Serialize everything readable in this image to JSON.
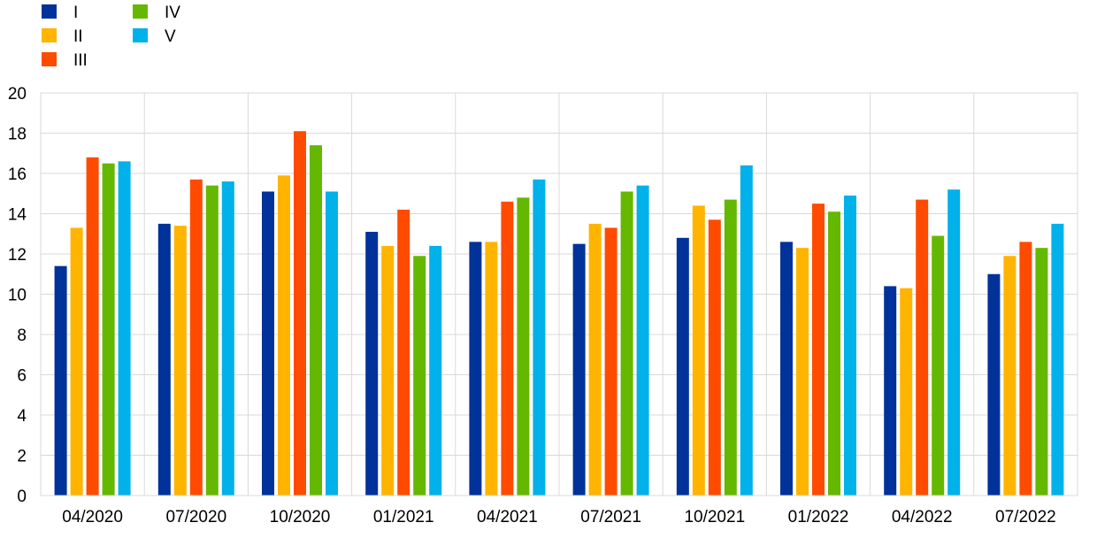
{
  "chart_data": {
    "type": "bar",
    "title": "",
    "xlabel": "",
    "ylabel": "",
    "ylim": [
      0,
      20
    ],
    "yticks": [
      0,
      2,
      4,
      6,
      8,
      10,
      12,
      14,
      16,
      18,
      20
    ],
    "grid": true,
    "legend_position": "top-left",
    "categories": [
      "04/2020",
      "07/2020",
      "10/2020",
      "01/2021",
      "04/2021",
      "07/2021",
      "10/2021",
      "01/2022",
      "04/2022",
      "07/2022"
    ],
    "series": [
      {
        "name": "I",
        "color": "#003299",
        "values": [
          11.4,
          13.5,
          15.1,
          13.1,
          12.6,
          12.5,
          12.8,
          12.6,
          10.4,
          11.0
        ]
      },
      {
        "name": "II",
        "color": "#FFB400",
        "values": [
          13.3,
          13.4,
          15.9,
          12.4,
          12.6,
          13.5,
          14.4,
          12.3,
          10.3,
          11.9
        ]
      },
      {
        "name": "III",
        "color": "#FF4B00",
        "values": [
          16.8,
          15.7,
          18.1,
          14.2,
          14.6,
          13.3,
          13.7,
          14.5,
          14.7,
          12.6
        ]
      },
      {
        "name": "IV",
        "color": "#65B800",
        "values": [
          16.5,
          15.4,
          17.4,
          11.9,
          14.8,
          15.1,
          14.7,
          14.1,
          12.9,
          12.3
        ]
      },
      {
        "name": "V",
        "color": "#00B1EA",
        "values": [
          16.6,
          15.6,
          15.1,
          12.4,
          15.7,
          15.4,
          16.4,
          14.9,
          15.2,
          13.5
        ]
      }
    ]
  }
}
